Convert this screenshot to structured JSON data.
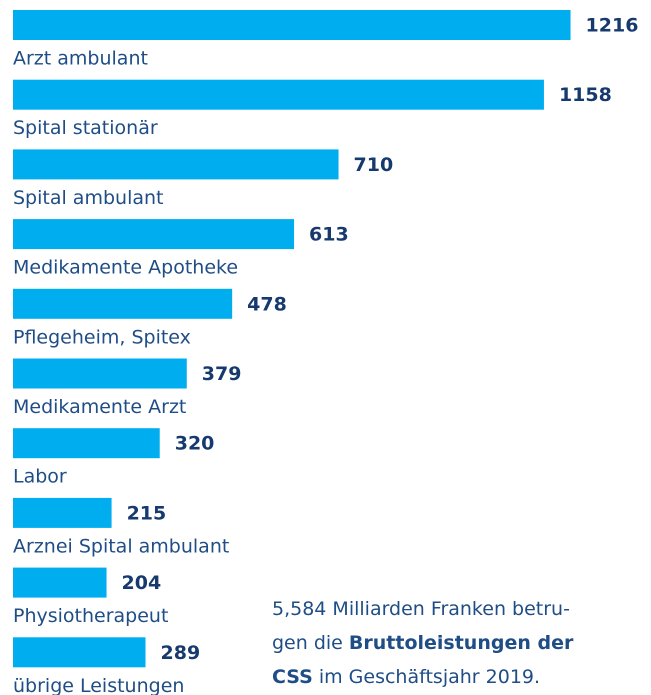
{
  "chart_data": {
    "type": "bar",
    "categories": [
      "Arzt ambulant",
      "Spital stationär",
      "Spital ambulant",
      "Medikamente Apotheke",
      "Pflegeheim, Spitex",
      "Medikamente Arzt",
      "Labor",
      "Arznei Spital ambulant",
      "Physiotherapeut",
      "übrige Leistungen"
    ],
    "values": [
      1216,
      1158,
      710,
      613,
      478,
      379,
      320,
      215,
      204,
      289
    ],
    "color": "#00aeef",
    "annotation": [
      [
        {
          "text": "5,584 Milliarden Franken betru-",
          "bold": false
        }
      ],
      [
        {
          "text": "gen die ",
          "bold": false
        },
        {
          "text": "Bruttoleistungen der",
          "bold": true
        }
      ],
      [
        {
          "text": "CSS",
          "bold": true
        },
        {
          "text": " im Geschäftsjahr 2019.",
          "bold": false
        }
      ]
    ]
  }
}
